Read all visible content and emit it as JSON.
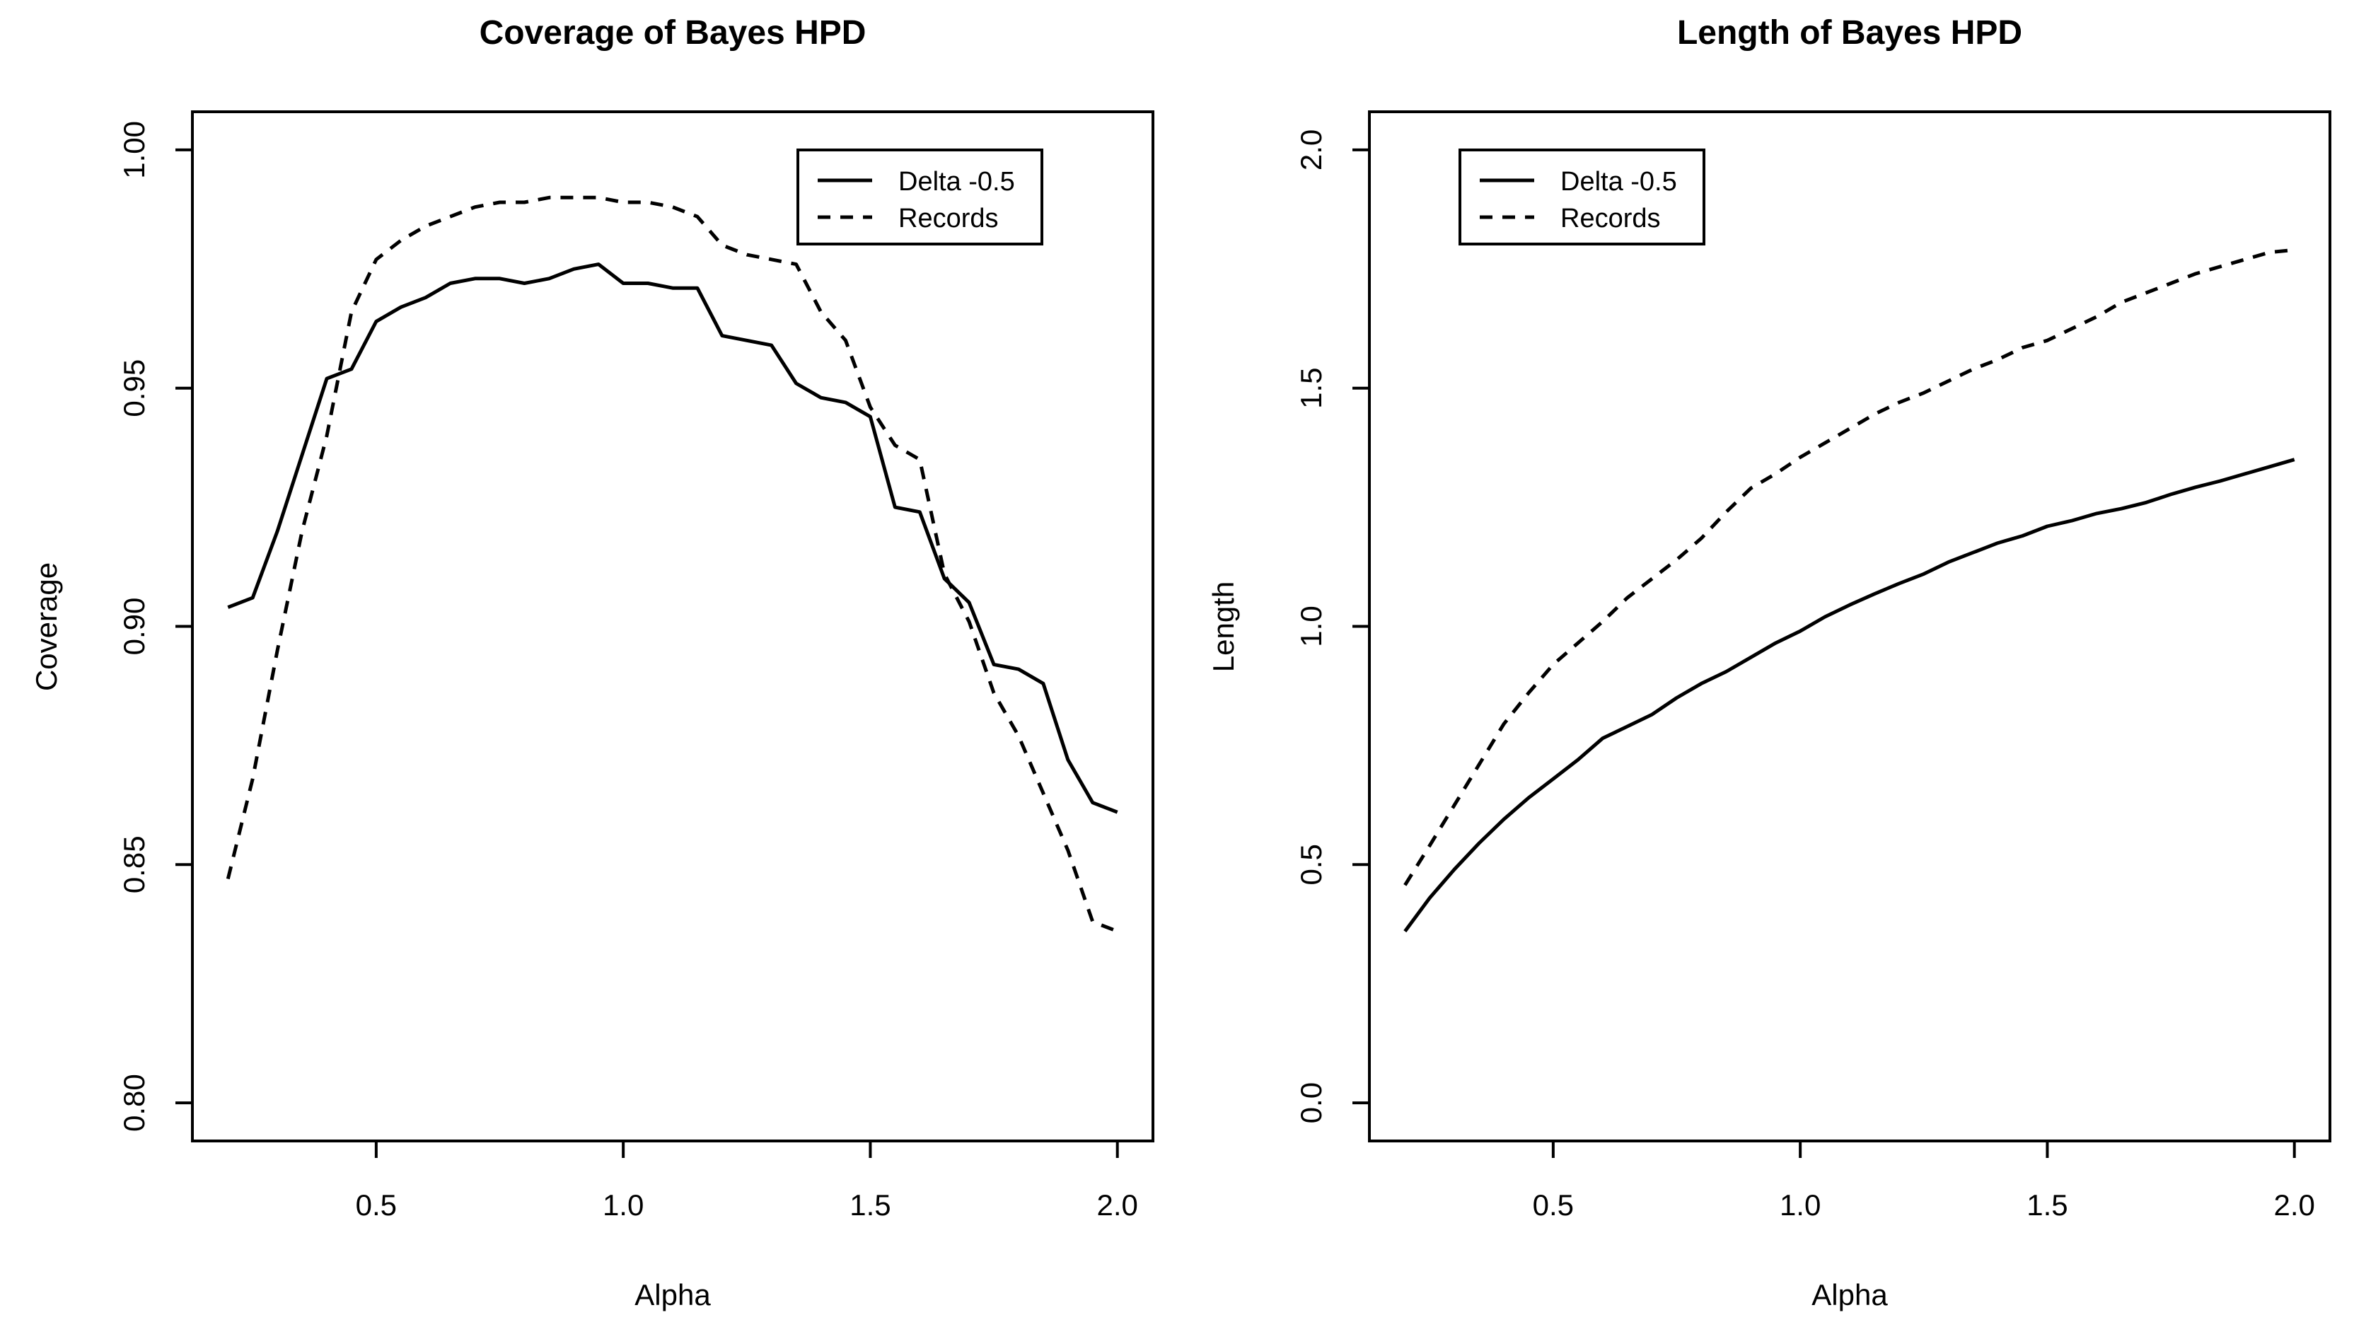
{
  "figure": {
    "background_color": "#ffffff",
    "ink_color": "#000000"
  },
  "chart_data": [
    {
      "type": "line",
      "title": "Coverage of Bayes HPD",
      "xlabel": "Alpha",
      "ylabel": "Coverage",
      "x_usr": [
        0.128,
        2.072
      ],
      "y_usr": [
        0.792,
        1.008
      ],
      "xlim": [
        0.2,
        2.0
      ],
      "ylim": [
        0.8,
        1.0
      ],
      "grid": "off",
      "xticks": [
        0.5,
        1.0,
        1.5,
        2.0
      ],
      "xtick_labels": [
        "0.5",
        "1.0",
        "1.5",
        "2.0"
      ],
      "yticks": [
        0.8,
        0.85,
        0.9,
        0.95,
        1.0
      ],
      "ytick_labels": [
        "0.80",
        "0.85",
        "0.90",
        "0.95",
        "1.00"
      ],
      "legend": {
        "position": "top-right",
        "entries": [
          {
            "label": "Delta -0.5",
            "style": "solid"
          },
          {
            "label": "Records",
            "style": "dashed"
          }
        ]
      },
      "x": [
        0.2,
        0.25,
        0.3,
        0.35,
        0.4,
        0.45,
        0.5,
        0.55,
        0.6,
        0.65,
        0.7,
        0.75,
        0.8,
        0.85,
        0.9,
        0.95,
        1.0,
        1.05,
        1.1,
        1.15,
        1.2,
        1.25,
        1.3,
        1.35,
        1.4,
        1.45,
        1.5,
        1.55,
        1.6,
        1.65,
        1.7,
        1.75,
        1.8,
        1.85,
        1.9,
        1.95,
        2.0
      ],
      "series": [
        {
          "id": "delta",
          "name": "Delta -0.5",
          "style": "solid",
          "values": [
            0.904,
            0.906,
            0.92,
            0.936,
            0.952,
            0.954,
            0.964,
            0.967,
            0.969,
            0.972,
            0.973,
            0.973,
            0.972,
            0.973,
            0.975,
            0.976,
            0.972,
            0.972,
            0.971,
            0.971,
            0.961,
            0.96,
            0.959,
            0.951,
            0.948,
            0.947,
            0.944,
            0.925,
            0.924,
            0.91,
            0.905,
            0.892,
            0.891,
            0.888,
            0.872,
            0.863,
            0.861
          ]
        },
        {
          "id": "records",
          "name": "Records",
          "style": "dashed",
          "values": [
            0.847,
            0.868,
            0.895,
            0.92,
            0.94,
            0.966,
            0.977,
            0.981,
            0.984,
            0.986,
            0.988,
            0.989,
            0.989,
            0.99,
            0.99,
            0.99,
            0.989,
            0.989,
            0.988,
            0.986,
            0.98,
            0.978,
            0.977,
            0.976,
            0.966,
            0.96,
            0.946,
            0.938,
            0.935,
            0.911,
            0.901,
            0.886,
            0.877,
            0.865,
            0.853,
            0.838,
            0.836
          ]
        }
      ]
    },
    {
      "type": "line",
      "title": "Length of Bayes HPD",
      "xlabel": "Alpha",
      "ylabel": "Length",
      "x_usr": [
        0.128,
        2.072
      ],
      "y_usr": [
        -0.08,
        2.08
      ],
      "xlim": [
        0.2,
        2.0
      ],
      "ylim": [
        0.0,
        2.0
      ],
      "grid": "off",
      "xticks": [
        0.5,
        1.0,
        1.5,
        2.0
      ],
      "xtick_labels": [
        "0.5",
        "1.0",
        "1.5",
        "2.0"
      ],
      "yticks": [
        0.0,
        0.5,
        1.0,
        1.5,
        2.0
      ],
      "ytick_labels": [
        "0.0",
        "0.5",
        "1.0",
        "1.5",
        "2.0"
      ],
      "legend": {
        "position": "top-left",
        "entries": [
          {
            "label": "Delta -0.5",
            "style": "solid"
          },
          {
            "label": "Records",
            "style": "dashed"
          }
        ]
      },
      "x": [
        0.2,
        0.25,
        0.3,
        0.35,
        0.4,
        0.45,
        0.5,
        0.55,
        0.6,
        0.65,
        0.7,
        0.75,
        0.8,
        0.85,
        0.9,
        0.95,
        1.0,
        1.05,
        1.1,
        1.15,
        1.2,
        1.25,
        1.3,
        1.35,
        1.4,
        1.45,
        1.5,
        1.55,
        1.6,
        1.65,
        1.7,
        1.75,
        1.8,
        1.85,
        1.9,
        1.95,
        2.0
      ],
      "series": [
        {
          "id": "delta",
          "name": "Delta -0.5",
          "style": "solid",
          "values": [
            0.36,
            0.43,
            0.49,
            0.545,
            0.595,
            0.64,
            0.68,
            0.72,
            0.765,
            0.79,
            0.815,
            0.85,
            0.88,
            0.905,
            0.935,
            0.965,
            0.99,
            1.02,
            1.045,
            1.068,
            1.09,
            1.11,
            1.135,
            1.155,
            1.175,
            1.19,
            1.21,
            1.222,
            1.237,
            1.247,
            1.26,
            1.277,
            1.292,
            1.305,
            1.32,
            1.335,
            1.35
          ]
        },
        {
          "id": "records",
          "name": "Records",
          "style": "dashed",
          "values": [
            0.457,
            0.54,
            0.625,
            0.71,
            0.795,
            0.86,
            0.92,
            0.965,
            1.01,
            1.06,
            1.1,
            1.14,
            1.185,
            1.24,
            1.29,
            1.32,
            1.355,
            1.385,
            1.415,
            1.445,
            1.47,
            1.49,
            1.515,
            1.54,
            1.56,
            1.585,
            1.6,
            1.625,
            1.65,
            1.68,
            1.7,
            1.72,
            1.74,
            1.755,
            1.77,
            1.785,
            1.79
          ]
        }
      ]
    }
  ]
}
